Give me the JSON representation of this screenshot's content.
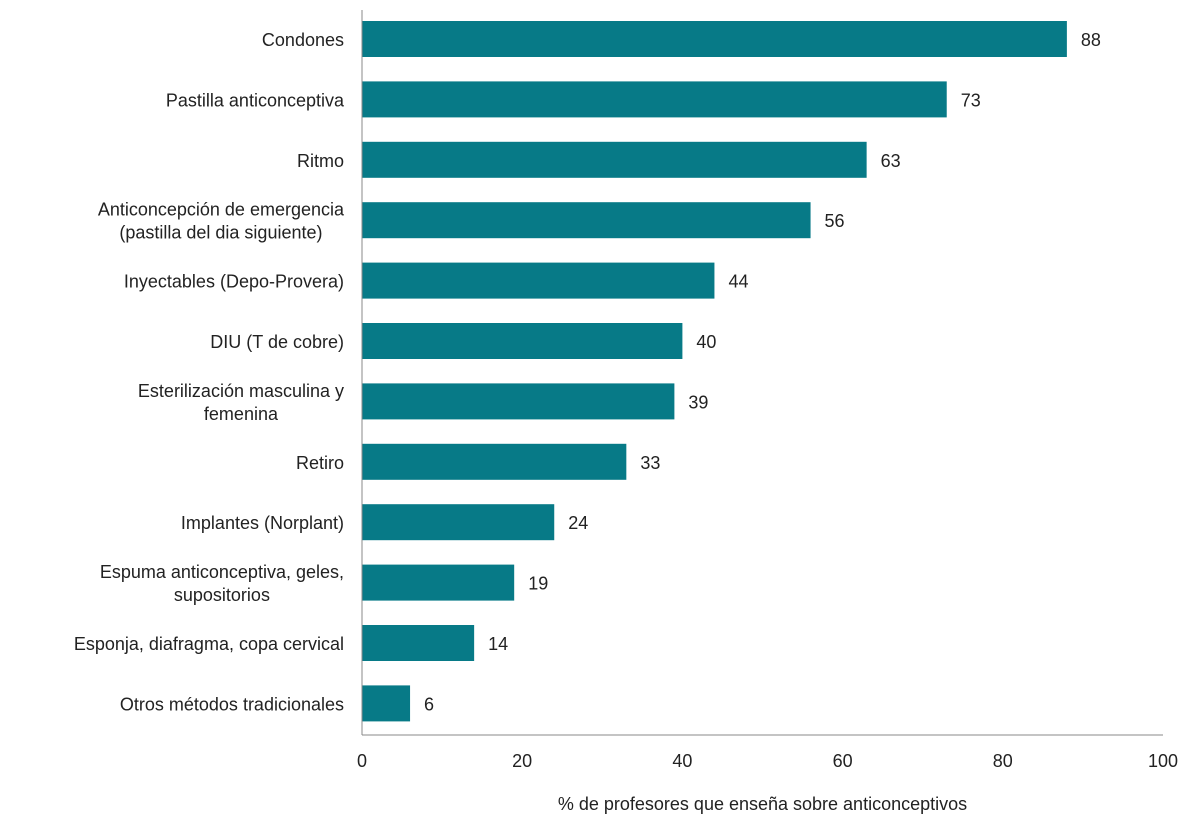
{
  "chart_data": {
    "type": "bar",
    "orientation": "horizontal",
    "title": "",
    "xlabel": "% de profesores que enseña sobre anticonceptivos",
    "ylabel": "",
    "xlim": [
      0,
      100
    ],
    "xticks": [
      0,
      20,
      40,
      60,
      80,
      100
    ],
    "grid": false,
    "bar_color": "#077a87",
    "categories": [
      [
        "Condones"
      ],
      [
        "Pastilla anticonceptiva"
      ],
      [
        "Ritmo"
      ],
      [
        "Anticoncepción de emergencia",
        "(pastilla del dia siguiente)"
      ],
      [
        "Inyectables (Depo-Provera)"
      ],
      [
        "DIU (T de cobre)"
      ],
      [
        "Esterilización masculina y",
        "femenina"
      ],
      [
        "Retiro"
      ],
      [
        "Implantes (Norplant)"
      ],
      [
        "Espuma anticonceptiva, geles,",
        "supositorios"
      ],
      [
        "Esponja, diafragma, copa cervical"
      ],
      [
        "Otros métodos tradicionales"
      ]
    ],
    "values": [
      88,
      73,
      63,
      56,
      44,
      40,
      39,
      33,
      24,
      19,
      14,
      6
    ]
  }
}
